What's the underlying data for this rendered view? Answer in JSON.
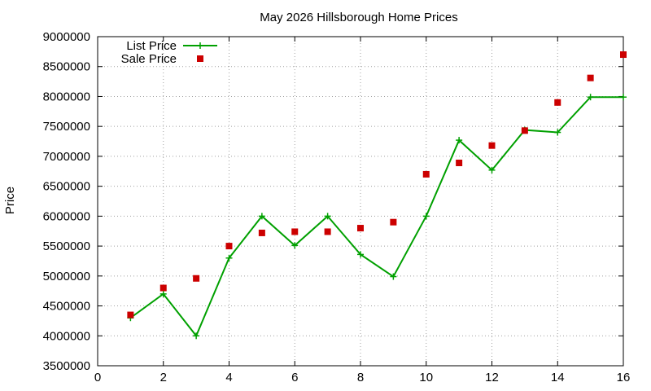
{
  "chart_data": {
    "type": "line",
    "title": "May 2026 Hillsborough Home Prices",
    "xlabel": "",
    "ylabel": "Price",
    "xlim": [
      0,
      16
    ],
    "ylim": [
      3500000,
      9000000
    ],
    "x_ticks": [
      0,
      2,
      4,
      6,
      8,
      10,
      12,
      14,
      16
    ],
    "y_ticks": [
      3500000,
      4000000,
      4500000,
      5000000,
      5500000,
      6000000,
      6500000,
      7000000,
      7500000,
      8000000,
      8500000,
      9000000
    ],
    "grid": true,
    "legend_position": "top-left",
    "series": [
      {
        "name": "List Price",
        "style": "line-with-plus-markers",
        "color": "#00a000",
        "x": [
          1,
          2,
          3,
          4,
          5,
          6,
          7,
          8,
          9,
          10,
          11,
          12,
          13,
          14,
          15,
          16
        ],
        "values": [
          4300000,
          4700000,
          4000000,
          5300000,
          6000000,
          5510000,
          6000000,
          5360000,
          4990000,
          6000000,
          7270000,
          6770000,
          7440000,
          7400000,
          7990000,
          7990000
        ]
      },
      {
        "name": "Sale Price",
        "style": "square-markers",
        "color": "#cc0000",
        "x": [
          1,
          2,
          3,
          4,
          5,
          6,
          7,
          8,
          9,
          10,
          11,
          12,
          13,
          14,
          15,
          16
        ],
        "values": [
          4350000,
          4800000,
          4960000,
          5500000,
          5720000,
          5740000,
          5740000,
          5800000,
          5900000,
          6700000,
          6890000,
          7180000,
          7430000,
          7900000,
          8310000,
          8700000
        ]
      }
    ]
  }
}
